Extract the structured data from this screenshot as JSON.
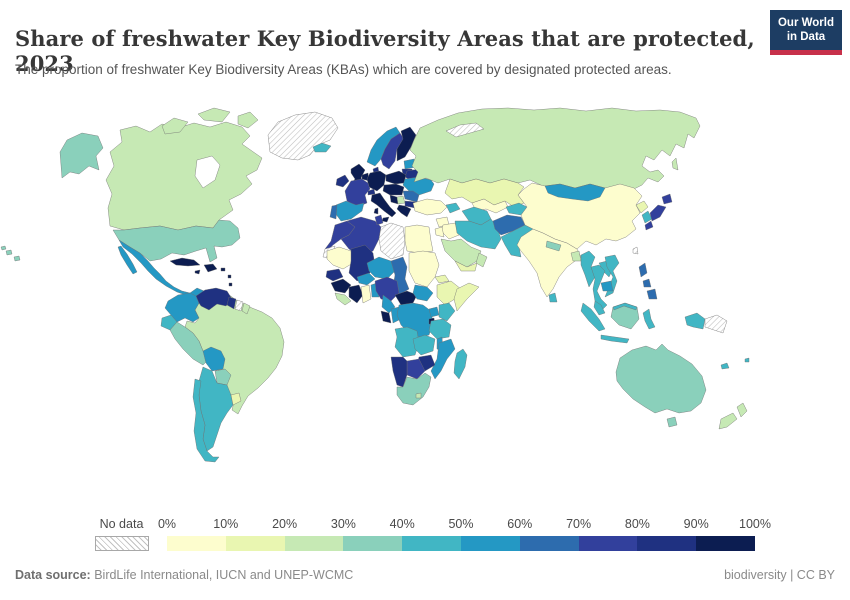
{
  "header": {
    "title": "Share of freshwater Key Biodiversity Areas that are protected, 2023",
    "subtitle": "The proportion of freshwater Key Biodiversity Areas (KBAs) which are covered by designated protected areas."
  },
  "logo": {
    "line1": "Our World",
    "line2": "in Data",
    "bg_color": "#1d3d63",
    "accent_color": "#c7304a"
  },
  "legend": {
    "no_data_label": "No data",
    "tick_labels": [
      "0%",
      "10%",
      "20%",
      "30%",
      "40%",
      "50%",
      "60%",
      "70%",
      "80%",
      "90%",
      "100%"
    ]
  },
  "footer": {
    "source_label": "Data source:",
    "source_text": " BirdLife International, IUCN and UNEP-WCMC",
    "credit_text": "biodiversity | CC BY"
  },
  "chart_data": {
    "type": "choropleth",
    "title": "Share of freshwater Key Biodiversity Areas that are protected, 2023",
    "year": 2023,
    "unit": "% of freshwater KBAs covered by designated protected areas",
    "legend_position": "bottom",
    "bin_labels": [
      "0-10%",
      "10-20%",
      "20-30%",
      "30-40%",
      "40-50%",
      "50-60%",
      "60-70%",
      "70-80%",
      "80-90%",
      "90-100%"
    ],
    "bin_colors": [
      "#fdfdce",
      "#e9f6b1",
      "#c6e9b4",
      "#8ad0bb",
      "#41b6c4",
      "#2498c4",
      "#2d6cae",
      "#32409c",
      "#1f3181",
      "#0c1d51"
    ],
    "no_data": {
      "label": "No data",
      "pattern": "diagonal-hatch"
    },
    "countries": [
      {
        "id": "canada",
        "name": "Canada",
        "bin": 3
      },
      {
        "id": "usa",
        "name": "United States",
        "bin": 4
      },
      {
        "id": "alaska",
        "name": "United States (Alaska)",
        "bin": 4
      },
      {
        "id": "hawaii",
        "name": "United States (Hawaii)",
        "bin": 4
      },
      {
        "id": "greenland",
        "name": "Greenland",
        "bin": 0
      },
      {
        "id": "iceland",
        "name": "Iceland",
        "bin": 5
      },
      {
        "id": "mexico",
        "name": "Mexico",
        "bin": 6
      },
      {
        "id": "guatemala",
        "name": "Guatemala",
        "bin": 7
      },
      {
        "id": "belize",
        "name": "Belize",
        "bin": 5
      },
      {
        "id": "honduras",
        "name": "Honduras",
        "bin": 10
      },
      {
        "id": "nicaragua",
        "name": "Nicaragua",
        "bin": 9
      },
      {
        "id": "costa-rica-panama",
        "name": "Costa Rica / Panama",
        "bin": 6
      },
      {
        "id": "cuba",
        "name": "Cuba",
        "bin": 10
      },
      {
        "id": "hispaniola",
        "name": "Haiti / Dominican Republic",
        "bin": 10
      },
      {
        "id": "jamaica",
        "name": "Jamaica",
        "bin": 10
      },
      {
        "id": "puerto-rico",
        "name": "Puerto Rico",
        "bin": 10
      },
      {
        "id": "lesser-antilles",
        "name": "Lesser Antilles",
        "bin": 10
      },
      {
        "id": "colombia",
        "name": "Colombia",
        "bin": 6
      },
      {
        "id": "venezuela",
        "name": "Venezuela",
        "bin": 9
      },
      {
        "id": "guyana",
        "name": "Guyana",
        "bin": 9
      },
      {
        "id": "suriname",
        "name": "Suriname",
        "bin": 0
      },
      {
        "id": "french-guiana",
        "name": "French Guiana",
        "bin": 3
      },
      {
        "id": "ecuador",
        "name": "Ecuador",
        "bin": 5
      },
      {
        "id": "peru",
        "name": "Peru",
        "bin": 4
      },
      {
        "id": "brazil",
        "name": "Brazil",
        "bin": 3
      },
      {
        "id": "bolivia",
        "name": "Bolivia",
        "bin": 6
      },
      {
        "id": "paraguay",
        "name": "Paraguay",
        "bin": 4
      },
      {
        "id": "uruguay",
        "name": "Uruguay",
        "bin": 2
      },
      {
        "id": "argentina",
        "name": "Argentina",
        "bin": 5
      },
      {
        "id": "chile",
        "name": "Chile",
        "bin": 5
      },
      {
        "id": "ireland",
        "name": "Ireland",
        "bin": 9
      },
      {
        "id": "uk",
        "name": "United Kingdom",
        "bin": 10
      },
      {
        "id": "norway",
        "name": "Norway",
        "bin": 6
      },
      {
        "id": "sweden",
        "name": "Sweden",
        "bin": 8
      },
      {
        "id": "finland",
        "name": "Finland",
        "bin": 10
      },
      {
        "id": "denmark",
        "name": "Denmark",
        "bin": 9
      },
      {
        "id": "estonia-latvia",
        "name": "Estonia / Latvia",
        "bin": 6
      },
      {
        "id": "lithuania",
        "name": "Lithuania",
        "bin": 9
      },
      {
        "id": "belarus",
        "name": "Belarus",
        "bin": 9
      },
      {
        "id": "benelux",
        "name": "Netherlands / Belgium",
        "bin": 10
      },
      {
        "id": "germany",
        "name": "Germany",
        "bin": 10
      },
      {
        "id": "france",
        "name": "France",
        "bin": 8
      },
      {
        "id": "spain",
        "name": "Spain",
        "bin": 6
      },
      {
        "id": "portugal",
        "name": "Portugal",
        "bin": 7
      },
      {
        "id": "switzerland",
        "name": "Switzerland",
        "bin": 9
      },
      {
        "id": "italy",
        "name": "Italy",
        "bin": 10
      },
      {
        "id": "central-europe",
        "name": "Czechia / Austria / Hungary",
        "bin": 10
      },
      {
        "id": "poland",
        "name": "Poland",
        "bin": 10
      },
      {
        "id": "ukraine",
        "name": "Ukraine",
        "bin": 6
      },
      {
        "id": "romania",
        "name": "Romania",
        "bin": 7
      },
      {
        "id": "serbia-bosnia",
        "name": "Serbia / Bosnia",
        "bin": 3
      },
      {
        "id": "west-balkans",
        "name": "Croatia / Slovenia",
        "bin": 10
      },
      {
        "id": "bulgaria",
        "name": "Bulgaria",
        "bin": 9
      },
      {
        "id": "greece",
        "name": "Greece",
        "bin": 10
      },
      {
        "id": "russia",
        "name": "Russia",
        "bin": 3
      },
      {
        "id": "arctic-islands",
        "name": "Arctic islands",
        "bin": 0
      },
      {
        "id": "turkey",
        "name": "Turkey",
        "bin": 1
      },
      {
        "id": "syria",
        "name": "Syria",
        "bin": 1
      },
      {
        "id": "iraq",
        "name": "Iraq",
        "bin": 1
      },
      {
        "id": "jordan-israel",
        "name": "Jordan / Israel",
        "bin": 1
      },
      {
        "id": "saudi-arabia",
        "name": "Saudi Arabia",
        "bin": 3
      },
      {
        "id": "yemen",
        "name": "Yemen",
        "bin": 2
      },
      {
        "id": "oman",
        "name": "Oman",
        "bin": 3
      },
      {
        "id": "iran",
        "name": "Iran",
        "bin": 5
      },
      {
        "id": "caucasus",
        "name": "Georgia / Azerbaijan",
        "bin": 5
      },
      {
        "id": "kazakhstan",
        "name": "Kazakhstan",
        "bin": 2
      },
      {
        "id": "uzbekistan",
        "name": "Uzbekistan",
        "bin": 1
      },
      {
        "id": "turkmenistan",
        "name": "Turkmenistan",
        "bin": 5
      },
      {
        "id": "kyrgyz-tajik",
        "name": "Kyrgyzstan / Tajikistan",
        "bin": 5
      },
      {
        "id": "afghanistan",
        "name": "Afghanistan",
        "bin": 7
      },
      {
        "id": "pakistan",
        "name": "Pakistan",
        "bin": 5
      },
      {
        "id": "india",
        "name": "India",
        "bin": 1
      },
      {
        "id": "nepal",
        "name": "Nepal",
        "bin": 4
      },
      {
        "id": "bangladesh",
        "name": "Bangladesh",
        "bin": 3
      },
      {
        "id": "sri-lanka",
        "name": "Sri Lanka",
        "bin": 5
      },
      {
        "id": "china",
        "name": "China",
        "bin": 1
      },
      {
        "id": "mongolia",
        "name": "Mongolia",
        "bin": 6
      },
      {
        "id": "north-korea",
        "name": "North Korea",
        "bin": 2
      },
      {
        "id": "south-korea",
        "name": "South Korea",
        "bin": 5
      },
      {
        "id": "japan",
        "name": "Japan",
        "bin": 8
      },
      {
        "id": "taiwan",
        "name": "Taiwan",
        "bin": 0
      },
      {
        "id": "myanmar",
        "name": "Myanmar",
        "bin": 5
      },
      {
        "id": "thailand",
        "name": "Thailand",
        "bin": 5
      },
      {
        "id": "laos",
        "name": "Laos",
        "bin": 5
      },
      {
        "id": "vietnam",
        "name": "Vietnam",
        "bin": 5
      },
      {
        "id": "cambodia",
        "name": "Cambodia",
        "bin": 6
      },
      {
        "id": "malaysia",
        "name": "Malaysia",
        "bin": 5
      },
      {
        "id": "sumatra",
        "name": "Indonesia (Sumatra)",
        "bin": 5
      },
      {
        "id": "java",
        "name": "Indonesia (Java)",
        "bin": 5
      },
      {
        "id": "kalimantan",
        "name": "Indonesia (Kalimantan)",
        "bin": 4
      },
      {
        "id": "borneo-malaysia",
        "name": "Malaysia (Borneo)",
        "bin": 5
      },
      {
        "id": "sulawesi",
        "name": "Indonesia (Sulawesi)",
        "bin": 5
      },
      {
        "id": "west-papua",
        "name": "Indonesia (Papua)",
        "bin": 5
      },
      {
        "id": "papua-new-guinea",
        "name": "Papua New Guinea",
        "bin": 0
      },
      {
        "id": "philippines",
        "name": "Philippines",
        "bin": 7
      },
      {
        "id": "morocco",
        "name": "Morocco",
        "bin": 8
      },
      {
        "id": "western-sahara",
        "name": "Western Sahara",
        "bin": 0
      },
      {
        "id": "algeria",
        "name": "Algeria",
        "bin": 8
      },
      {
        "id": "tunisia",
        "name": "Tunisia",
        "bin": 8
      },
      {
        "id": "libya",
        "name": "Libya",
        "bin": 0
      },
      {
        "id": "egypt",
        "name": "Egypt",
        "bin": 1
      },
      {
        "id": "mauritania",
        "name": "Mauritania",
        "bin": 1
      },
      {
        "id": "mali",
        "name": "Mali",
        "bin": 9
      },
      {
        "id": "senegal",
        "name": "Senegal",
        "bin": 9
      },
      {
        "id": "guinea",
        "name": "Guinea",
        "bin": 10
      },
      {
        "id": "sierra-leone-liberia",
        "name": "Sierra Leone / Liberia",
        "bin": 3
      },
      {
        "id": "cote-divoire",
        "name": "Cote d'Ivoire",
        "bin": 10
      },
      {
        "id": "ghana",
        "name": "Ghana",
        "bin": 1
      },
      {
        "id": "burkina-faso",
        "name": "Burkina Faso",
        "bin": 6
      },
      {
        "id": "benin-togo",
        "name": "Benin / Togo",
        "bin": 6
      },
      {
        "id": "niger",
        "name": "Niger",
        "bin": 6
      },
      {
        "id": "nigeria",
        "name": "Nigeria",
        "bin": 8
      },
      {
        "id": "chad",
        "name": "Chad",
        "bin": 7
      },
      {
        "id": "sudan",
        "name": "Sudan",
        "bin": 1
      },
      {
        "id": "eritrea",
        "name": "Eritrea",
        "bin": 2
      },
      {
        "id": "ethiopia",
        "name": "Ethiopia",
        "bin": 2
      },
      {
        "id": "somalia",
        "name": "Somalia",
        "bin": 2
      },
      {
        "id": "cameroon",
        "name": "Cameroon",
        "bin": 6
      },
      {
        "id": "central-african-republic",
        "name": "Central African Republic",
        "bin": 10
      },
      {
        "id": "south-sudan",
        "name": "South Sudan",
        "bin": 6
      },
      {
        "id": "gabon",
        "name": "Gabon",
        "bin": 10
      },
      {
        "id": "congo",
        "name": "Congo",
        "bin": 6
      },
      {
        "id": "dr-congo",
        "name": "Democratic Republic of Congo",
        "bin": 6
      },
      {
        "id": "uganda",
        "name": "Uganda",
        "bin": 6
      },
      {
        "id": "kenya",
        "name": "Kenya",
        "bin": 5
      },
      {
        "id": "rwanda-burundi",
        "name": "Rwanda / Burundi",
        "bin": 10
      },
      {
        "id": "tanzania",
        "name": "Tanzania",
        "bin": 5
      },
      {
        "id": "angola",
        "name": "Angola",
        "bin": 5
      },
      {
        "id": "zambia",
        "name": "Zambia",
        "bin": 5
      },
      {
        "id": "malawi",
        "name": "Malawi",
        "bin": 6
      },
      {
        "id": "mozambique",
        "name": "Mozambique",
        "bin": 6
      },
      {
        "id": "zimbabwe",
        "name": "Zimbabwe",
        "bin": 9
      },
      {
        "id": "botswana",
        "name": "Botswana",
        "bin": 8
      },
      {
        "id": "namibia",
        "name": "Namibia",
        "bin": 9
      },
      {
        "id": "south-africa",
        "name": "South Africa",
        "bin": 4
      },
      {
        "id": "lesotho",
        "name": "Lesotho",
        "bin": 3
      },
      {
        "id": "madagascar",
        "name": "Madagascar",
        "bin": 5
      },
      {
        "id": "australia",
        "name": "Australia",
        "bin": 4
      },
      {
        "id": "tasmania",
        "name": "Australia (Tasmania)",
        "bin": 4
      },
      {
        "id": "new-zealand",
        "name": "New Zealand",
        "bin": 3
      },
      {
        "id": "new-caledonia",
        "name": "New Caledonia",
        "bin": 5
      },
      {
        "id": "fiji",
        "name": "Fiji",
        "bin": 5
      }
    ]
  }
}
